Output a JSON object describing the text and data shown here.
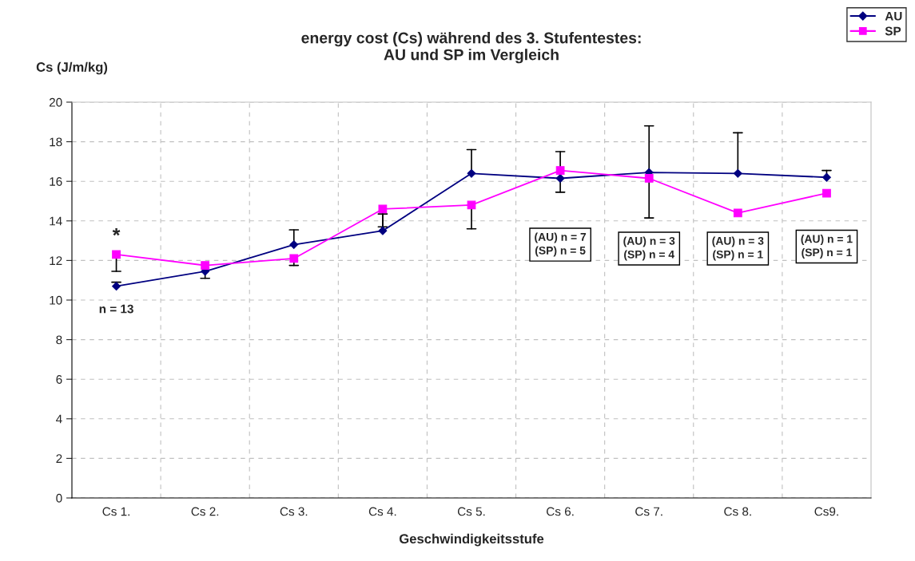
{
  "chart_data": {
    "type": "line",
    "title": "energy cost (Cs) während des 3. Stufentestes:\nAU und SP im Vergleich",
    "xlabel": "Geschwindigkeitsstufe",
    "ylabel": "Cs (J/m/kg)",
    "categories": [
      "Cs 1.",
      "Cs 2.",
      "Cs 3.",
      "Cs 4.",
      "Cs 5.",
      "Cs 6.",
      "Cs 7.",
      "Cs 8.",
      "Cs9."
    ],
    "series": [
      {
        "name": "AU",
        "color": "#000080",
        "marker": "diamond",
        "values": [
          10.7,
          11.45,
          12.8,
          13.5,
          16.4,
          16.15,
          16.45,
          16.4,
          16.2
        ],
        "errors": [
          [
            10.7,
            10.9
          ],
          null,
          [
            12.8,
            13.55
          ],
          [
            13.5,
            14.35
          ],
          [
            16.4,
            17.6
          ],
          [
            16.15,
            17.5
          ],
          [
            16.45,
            18.8
          ],
          [
            16.4,
            18.45
          ],
          [
            16.2,
            16.55
          ]
        ]
      },
      {
        "name": "SP",
        "color": "#ff00ff",
        "marker": "square",
        "values": [
          12.3,
          11.75,
          12.1,
          14.6,
          14.8,
          16.55,
          16.15,
          14.4,
          15.4
        ],
        "errors": [
          [
            11.45,
            12.3
          ],
          [
            11.1,
            11.75
          ],
          [
            11.75,
            12.1
          ],
          [
            13.7,
            14.6
          ],
          [
            13.6,
            14.8
          ],
          [
            15.45,
            16.55
          ],
          [
            14.15,
            16.15
          ],
          null,
          null
        ]
      }
    ],
    "ylim": [
      0,
      20
    ],
    "yticks": [
      0,
      2,
      4,
      6,
      8,
      10,
      12,
      14,
      16,
      18,
      20
    ],
    "grid": true,
    "legend": "top right",
    "annotations": [
      "*",
      "n = 13",
      "(AU) n = 7\n(SP) n = 5",
      "(AU) n = 3\n(SP) n = 4",
      "(AU) n = 3\n(SP) n = 1",
      "(AU) n = 1\n(SP) n = 1"
    ]
  }
}
